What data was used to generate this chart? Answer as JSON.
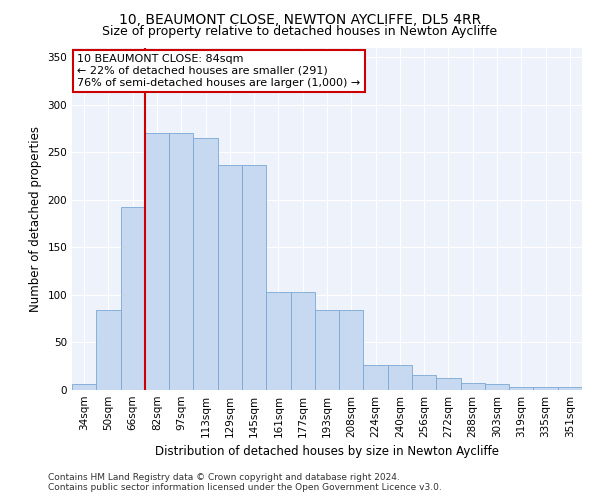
{
  "title": "10, BEAUMONT CLOSE, NEWTON AYCLIFFE, DL5 4RR",
  "subtitle": "Size of property relative to detached houses in Newton Aycliffe",
  "xlabel": "Distribution of detached houses by size in Newton Aycliffe",
  "ylabel": "Number of detached properties",
  "categories": [
    "34sqm",
    "50sqm",
    "66sqm",
    "82sqm",
    "97sqm",
    "113sqm",
    "129sqm",
    "145sqm",
    "161sqm",
    "177sqm",
    "193sqm",
    "208sqm",
    "224sqm",
    "240sqm",
    "256sqm",
    "272sqm",
    "288sqm",
    "303sqm",
    "319sqm",
    "335sqm",
    "351sqm"
  ],
  "values": [
    6,
    84,
    192,
    270,
    270,
    265,
    236,
    236,
    103,
    103,
    84,
    84,
    26,
    26,
    16,
    13,
    7,
    6,
    3,
    3,
    3
  ],
  "bar_color": "#c6d9f0",
  "bar_edge_color": "#7ba7d4",
  "vline_x_idx": 3,
  "vline_color": "#cc0000",
  "annotation_text": "10 BEAUMONT CLOSE: 84sqm\n← 22% of detached houses are smaller (291)\n76% of semi-detached houses are larger (1,000) →",
  "annotation_box_color": "#ffffff",
  "annotation_box_edge_color": "#cc0000",
  "ylim": [
    0,
    360
  ],
  "yticks": [
    0,
    50,
    100,
    150,
    200,
    250,
    300,
    350
  ],
  "plot_bg_color": "#eef2fb",
  "footer": "Contains HM Land Registry data © Crown copyright and database right 2024.\nContains public sector information licensed under the Open Government Licence v3.0.",
  "title_fontsize": 10,
  "subtitle_fontsize": 9,
  "xlabel_fontsize": 8.5,
  "ylabel_fontsize": 8.5,
  "tick_fontsize": 7.5,
  "footer_fontsize": 6.5,
  "annotation_fontsize": 8
}
